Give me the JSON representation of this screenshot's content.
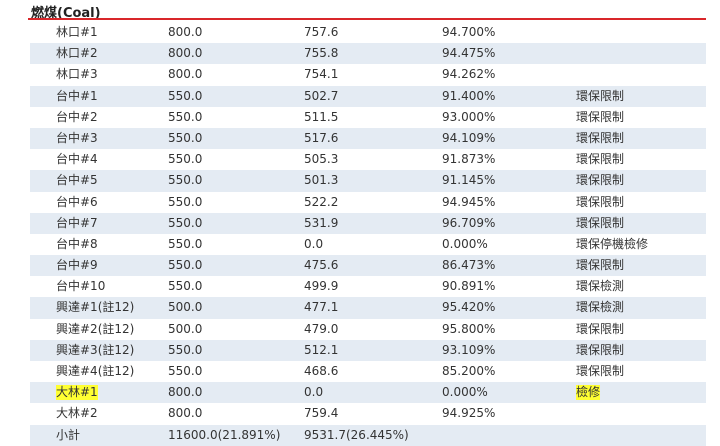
{
  "header": {
    "title": "燃煤(Coal)"
  },
  "table": {
    "rows": [
      [
        "林口#1",
        "800.0",
        "757.6",
        "94.700%"
      ],
      [
        "林口#2",
        "800.0",
        "755.8",
        "94.475%"
      ],
      [
        "林口#3",
        "800.0",
        "754.1",
        "94.262%"
      ],
      [
        "台中#1",
        "550.0",
        "502.7",
        "91.400%",
        "環保限制"
      ],
      [
        "台中#2",
        "550.0",
        "511.5",
        "93.000%",
        "環保限制"
      ],
      [
        "台中#3",
        "550.0",
        "517.6",
        "94.109%",
        "環保限制"
      ],
      [
        "台中#4",
        "550.0",
        "505.3",
        "91.873%",
        "環保限制"
      ],
      [
        "台中#5",
        "550.0",
        "501.3",
        "91.145%",
        "環保限制"
      ],
      [
        "台中#6",
        "550.0",
        "522.2",
        "94.945%",
        "環保限制"
      ],
      [
        "台中#7",
        "550.0",
        "531.9",
        "96.709%",
        "環保限制"
      ],
      [
        "台中#8",
        "550.0",
        "0.0",
        "0.000%",
        "環保停機檢修"
      ],
      [
        "台中#9",
        "550.0",
        "475.6",
        "86.473%",
        "環保限制"
      ],
      [
        "台中#10",
        "550.0",
        "499.9",
        "90.891%",
        "環保檢測"
      ],
      [
        "興達#1(註12)",
        "500.0",
        "477.1",
        "95.420%",
        "環保檢測"
      ],
      [
        "興達#2(註12)",
        "500.0",
        "479.0",
        "95.800%",
        "環保限制"
      ],
      [
        "興達#3(註12)",
        "550.0",
        "512.1",
        "93.109%",
        "環保限制"
      ],
      [
        "興達#4(註12)",
        "550.0",
        "468.6",
        "85.200%",
        "環保限制"
      ],
      [
        "大林#1",
        "800.0",
        "0.0",
        "0.000%",
        "檢修"
      ],
      [
        "大林#2",
        "800.0",
        "759.4",
        "94.925%"
      ],
      [
        "小計",
        "11600.0(21.891%)",
        "9531.7(26.445%)"
      ]
    ],
    "highlighted_cells": [
      [
        17,
        0
      ],
      [
        17,
        4
      ]
    ],
    "highlight_color": "#ffff33",
    "stripe_color": "#e4ebf3"
  }
}
